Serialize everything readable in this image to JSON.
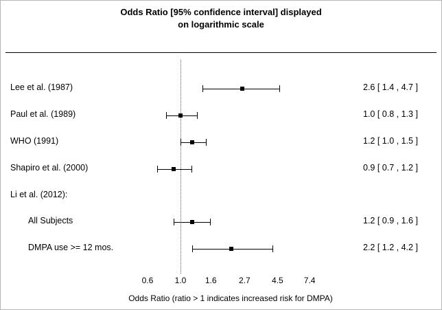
{
  "title": {
    "line1": "Odds Ratio [95% confidence interval] displayed",
    "line2": "on logarithmic scale"
  },
  "axis": {
    "ticks": [
      "0.6",
      "1.0",
      "1.6",
      "2.7",
      "4.5",
      "7.4"
    ],
    "label": "Odds Ratio (ratio > 1 indicates increased risk for DMPA)"
  },
  "colors": {
    "line": "#000000",
    "text": "#000000",
    "reference_line": "#555555"
  },
  "chart_data": {
    "type": "forest",
    "scale": "log",
    "reference_line": 1.0,
    "x_ticks": [
      0.6,
      1.0,
      1.6,
      2.7,
      4.5,
      7.4
    ],
    "xlabel": "Odds Ratio (ratio > 1 indicates increased risk for DMPA)",
    "title": "Odds Ratio [95% confidence interval] displayed on logarithmic scale",
    "studies": [
      {
        "label": "Lee et al. (1987)",
        "indent": false,
        "or": 2.6,
        "low": 1.4,
        "high": 4.7,
        "text": "2.6 [ 1.4 , 4.7 ]"
      },
      {
        "label": "Paul et al. (1989)",
        "indent": false,
        "or": 1.0,
        "low": 0.8,
        "high": 1.3,
        "text": "1.0 [ 0.8 , 1.3 ]"
      },
      {
        "label": "WHO (1991)",
        "indent": false,
        "or": 1.2,
        "low": 1.0,
        "high": 1.5,
        "text": "1.2 [ 1.0 , 1.5 ]"
      },
      {
        "label": "Shapiro et al. (2000)",
        "indent": false,
        "or": 0.9,
        "low": 0.7,
        "high": 1.2,
        "text": "0.9 [ 0.7 , 1.2 ]"
      },
      {
        "label": "Li et al. (2012):",
        "indent": false,
        "or": null,
        "low": null,
        "high": null,
        "text": ""
      },
      {
        "label": "All Subjects",
        "indent": true,
        "or": 1.2,
        "low": 0.9,
        "high": 1.6,
        "text": "1.2 [ 0.9 , 1.6 ]"
      },
      {
        "label": "DMPA use >= 12 mos.",
        "indent": true,
        "or": 2.2,
        "low": 1.2,
        "high": 4.2,
        "text": "2.2 [ 1.2 , 4.2 ]"
      }
    ]
  }
}
